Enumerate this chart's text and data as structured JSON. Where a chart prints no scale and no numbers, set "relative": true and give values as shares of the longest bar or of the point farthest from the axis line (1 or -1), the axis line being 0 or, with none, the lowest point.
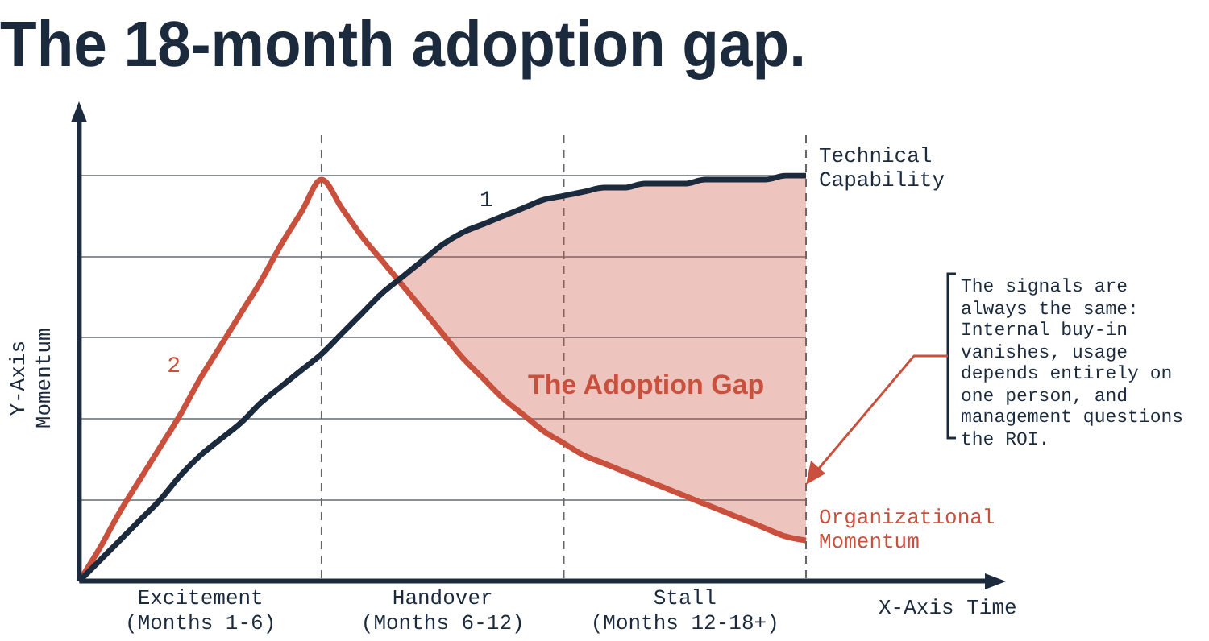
{
  "chart_data": {
    "type": "line",
    "title": "The 18-month adoption gap.",
    "xlabel": "X-Axis Time",
    "ylabel": "Y-Axis Momentum",
    "relative": true,
    "categories": [
      null,
      null,
      null,
      null,
      null,
      null,
      "Excitement (Months 1-6)",
      null,
      null,
      null,
      null,
      null,
      null,
      null,
      null,
      null,
      null,
      null,
      "Handover (Months 6-12)",
      null,
      null,
      null,
      null,
      null,
      null,
      null,
      null,
      null,
      null,
      null,
      "Stall (Months 12-18+)",
      null,
      null,
      null,
      null,
      null,
      null
    ],
    "series": [
      {
        "name": "Technical Capability",
        "color": "#1b2a3d",
        "values": [
          0,
          0.05,
          0.1,
          0.15,
          0.2,
          0.26,
          0.31,
          0.35,
          0.39,
          0.44,
          0.48,
          0.52,
          0.56,
          0.61,
          0.66,
          0.71,
          0.75,
          0.79,
          0.83,
          0.86,
          0.88,
          0.9,
          0.92,
          0.94,
          0.95,
          0.96,
          0.97,
          0.97,
          0.98,
          0.98,
          0.98,
          0.99,
          0.99,
          0.99,
          0.99,
          1,
          1
        ]
      },
      {
        "name": "Organizational Momentum",
        "color": "#c8503c",
        "values": [
          0,
          0.08,
          0.17,
          0.25,
          0.33,
          0.41,
          0.5,
          0.58,
          0.66,
          0.74,
          0.83,
          0.91,
          0.99,
          0.92,
          0.85,
          0.79,
          0.73,
          0.67,
          0.61,
          0.55,
          0.5,
          0.45,
          0.41,
          0.37,
          0.34,
          0.31,
          0.29,
          0.27,
          0.25,
          0.23,
          0.21,
          0.19,
          0.17,
          0.15,
          0.13,
          0.11,
          0.1
        ],
        "lower": [
          null,
          null,
          null,
          null,
          null,
          null,
          null,
          null,
          null,
          null,
          null,
          null,
          null,
          null,
          null,
          null,
          0.73,
          0.67,
          0.61,
          0.55,
          0.5,
          0.45,
          0.41,
          0.37,
          0.34,
          0.31,
          0.29,
          0.27,
          0.25,
          0.23,
          0.21,
          0.19,
          0.17,
          0.15,
          0.13,
          0.11,
          0.1
        ],
        "upper": [
          null,
          null,
          null,
          null,
          null,
          null,
          null,
          null,
          null,
          null,
          null,
          null,
          null,
          null,
          null,
          null,
          0.75,
          0.79,
          0.83,
          0.86,
          0.88,
          0.9,
          0.92,
          0.94,
          0.95,
          0.96,
          0.97,
          0.97,
          0.98,
          0.98,
          0.98,
          0.99,
          0.99,
          0.99,
          0.99,
          1,
          1
        ]
      }
    ],
    "annotations": [
      "1",
      "2",
      "The Adoption Gap",
      "The signals are always the same: Internal buy-in vanishes, usage depends entirely on one person, and management questions the ROI."
    ],
    "grid": true,
    "legend": "right",
    "marker": "none",
    "line_style": "solid"
  }
}
